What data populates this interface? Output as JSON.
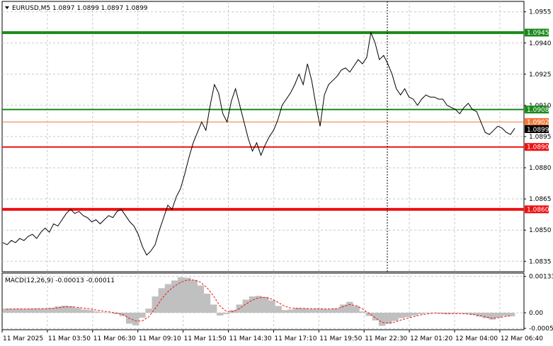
{
  "chart_data": [
    {
      "type": "line",
      "symbol": "EURUSD,M5",
      "ohlc": "1.0897 1.0899 1.0897 1.0899",
      "header_text": "EURUSD,M5  1.0897 1.0899 1.0897 1.0899",
      "ylim": [
        1.083,
        1.096
      ],
      "y_ticks": [
        "1.0955",
        "1.0940",
        "1.0925",
        "1.0910",
        "1.0895",
        "1.0880",
        "1.0865",
        "1.0850",
        "1.0835"
      ],
      "y_tick_values": [
        1.0955,
        1.094,
        1.0925,
        1.091,
        1.0895,
        1.088,
        1.0865,
        1.085,
        1.0835
      ],
      "x_ticks": [
        "11 Mar 2025",
        "11 Mar 03:50",
        "11 Mar 06:30",
        "11 Mar 09:10",
        "11 Mar 11:50",
        "11 Mar 14:30",
        "11 Mar 17:10",
        "11 Mar 19:50",
        "11 Mar 22:30",
        "12 Mar 01:20",
        "12 Mar 04:00",
        "12 Mar 06:40"
      ],
      "grid": true,
      "line_color": "#000000",
      "current_price_label": "1.0899",
      "current_price": 1.0899,
      "levels": [
        {
          "label": "1.0945",
          "value": 1.0945,
          "color": "#1a8a1a"
        },
        {
          "label": "1.0908",
          "value": 1.0908,
          "color": "#1a8a1a"
        },
        {
          "label": "1.0902",
          "value": 1.0902,
          "color": "#f07838"
        },
        {
          "label": "1.0890",
          "value": 1.089,
          "color": "#ee1111"
        },
        {
          "label": "1.0860",
          "value": 1.086,
          "color": "#ee1111"
        }
      ],
      "series": [
        {
          "values": [
            1.0844,
            1.0843,
            1.0845,
            1.0844,
            1.0846,
            1.0845,
            1.0847,
            1.0848,
            1.0846,
            1.0849,
            1.0851,
            1.0849,
            1.0853,
            1.0852,
            1.0855,
            1.0858,
            1.086,
            1.0858,
            1.0859,
            1.0857,
            1.0856,
            1.0854,
            1.0855,
            1.0853,
            1.0855,
            1.0857,
            1.0856,
            1.0859,
            1.086,
            1.0857,
            1.0854,
            1.0852,
            1.0848,
            1.0842,
            1.0838,
            1.084,
            1.0843,
            1.085,
            1.0856,
            1.0862,
            1.086,
            1.0866,
            1.087,
            1.0877,
            1.0885,
            1.0892,
            1.0897,
            1.0902,
            1.0898,
            1.091,
            1.092,
            1.0916,
            1.0906,
            1.0902,
            1.0912,
            1.0918,
            1.091,
            1.0902,
            1.0894,
            1.0888,
            1.0892,
            1.0886,
            1.0891,
            1.0895,
            1.0898,
            1.0903,
            1.091,
            1.0913,
            1.0916,
            1.092,
            1.0925,
            1.092,
            1.093,
            1.0922,
            1.091,
            1.09,
            1.0915,
            1.092,
            1.0922,
            1.0924,
            1.0927,
            1.0928,
            1.0926,
            1.0929,
            1.0932,
            1.093,
            1.0933,
            1.0945,
            1.094,
            1.0932,
            1.0934,
            1.093,
            1.0925,
            1.0918,
            1.0915,
            1.0918,
            1.0914,
            1.0913,
            1.091,
            1.0913,
            1.0915,
            1.0914,
            1.0914,
            1.0913,
            1.0913,
            1.091,
            1.0909,
            1.0908,
            1.0906,
            1.0909,
            1.0911,
            1.0908,
            1.0907,
            1.0902,
            1.0897,
            1.0896,
            1.0898,
            1.09,
            1.0899,
            1.0897,
            1.0896,
            1.0899
          ]
        }
      ]
    },
    {
      "type": "bar",
      "indicator_label": "MACD(12,26,9) -0.00013 -0.00011",
      "ylim": [
        -0.00062,
        0.00145
      ],
      "y_ticks": [
        "0.00133",
        "0.00",
        "-0.00057"
      ],
      "y_tick_values": [
        0.00133,
        0.0,
        -0.00057
      ],
      "bar_color": "#c0c0c0",
      "signal_color": "#ee1111",
      "series": [
        {
          "name": "MACD",
          "values": [
            0.00015,
            0.00014,
            0.00015,
            0.00014,
            0.00015,
            0.00015,
            0.00016,
            0.00018,
            0.00023,
            0.00026,
            0.00024,
            0.00018,
            0.00012,
            0.0001,
            5e-05,
            2e-05,
            0.0,
            -5e-05,
            -0.00012,
            -0.0004,
            -0.00046,
            -0.00018,
            0.00015,
            0.0006,
            0.0009,
            0.00105,
            0.00118,
            0.0013,
            0.00128,
            0.0012,
            0.001,
            0.0007,
            0.0003,
            -0.0001,
            -5e-05,
            0.0001,
            0.0003,
            0.00048,
            0.0006,
            0.00062,
            0.00058,
            0.00045,
            0.00025,
            0.0001,
            0.00012,
            0.00018,
            0.00016,
            0.00014,
            0.00015,
            0.00014,
            0.00013,
            0.00016,
            0.0003,
            0.0004,
            0.00025,
            5e-05,
            -0.00012,
            -0.00028,
            -0.00048,
            -0.0004,
            -0.0003,
            -0.0002,
            -0.00016,
            -0.0001,
            -5e-05,
            -2e-05,
            0.0,
            -3e-05,
            -5e-05,
            -3e-05,
            -2e-05,
            -4e-05,
            -8e-05,
            -0.00014,
            -0.0002,
            -0.00025,
            -0.00018,
            -0.00012,
            -0.00013
          ]
        },
        {
          "name": "Signal",
          "values": [
            0.00013,
            0.00014,
            0.00014,
            0.00014,
            0.00014,
            0.00015,
            0.00015,
            0.00016,
            0.00018,
            0.00021,
            0.00022,
            0.0002,
            0.00017,
            0.00014,
            0.0001,
            6e-05,
            3e-05,
            -1e-05,
            -6e-05,
            -0.0002,
            -0.0003,
            -0.0003,
            -0.00015,
            0.00015,
            0.0005,
            0.00078,
            0.00098,
            0.00112,
            0.0012,
            0.0012,
            0.00112,
            0.00092,
            0.00062,
            0.00025,
            5e-05,
            4e-05,
            0.00015,
            0.00032,
            0.00046,
            0.00055,
            0.00056,
            0.0005,
            0.00038,
            0.00024,
            0.00017,
            0.00016,
            0.00016,
            0.00015,
            0.00015,
            0.00014,
            0.00014,
            0.00015,
            0.00022,
            0.0003,
            0.00026,
            0.00014,
            -2e-05,
            -0.00018,
            -0.00035,
            -0.00038,
            -0.00034,
            -0.00026,
            -0.0002,
            -0.00014,
            -8e-05,
            -4e-05,
            -1e-05,
            -2e-05,
            -3e-05,
            -3e-05,
            -3e-05,
            -4e-05,
            -6e-05,
            -0.0001,
            -0.00015,
            -0.0002,
            -0.00018,
            -0.00014,
            -0.00011
          ]
        }
      ]
    }
  ]
}
